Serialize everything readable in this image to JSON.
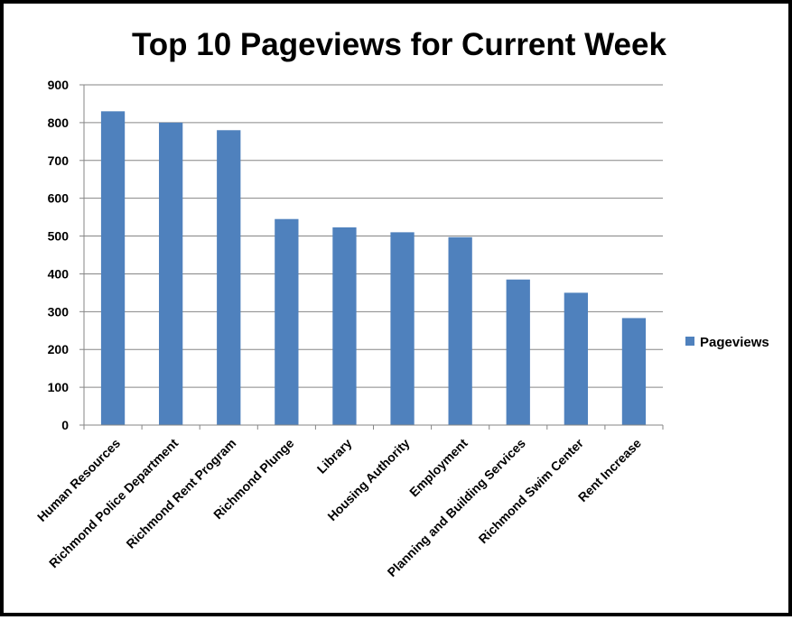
{
  "chart_data": {
    "type": "bar",
    "title": "Top 10 Pageviews for Current Week",
    "xlabel": "",
    "ylabel": "",
    "categories": [
      "Human Resources",
      "Richmond Police Department",
      "Richmond Rent Program",
      "Richmond Plunge",
      "Library",
      "Housing Authority",
      "Employment",
      "Planning and Building Services",
      "Richmond Swim Center",
      "Rent Increase"
    ],
    "series": [
      {
        "name": "Pageviews",
        "color": "#4f81bd",
        "values": [
          830,
          800,
          780,
          545,
          523,
          510,
          497,
          385,
          350,
          283
        ]
      }
    ],
    "ylim": [
      0,
      900
    ],
    "yticks": [
      "0",
      "100",
      "200",
      "300",
      "400",
      "500",
      "600",
      "700",
      "800",
      "900"
    ],
    "grid": true,
    "legend_position": "right"
  }
}
